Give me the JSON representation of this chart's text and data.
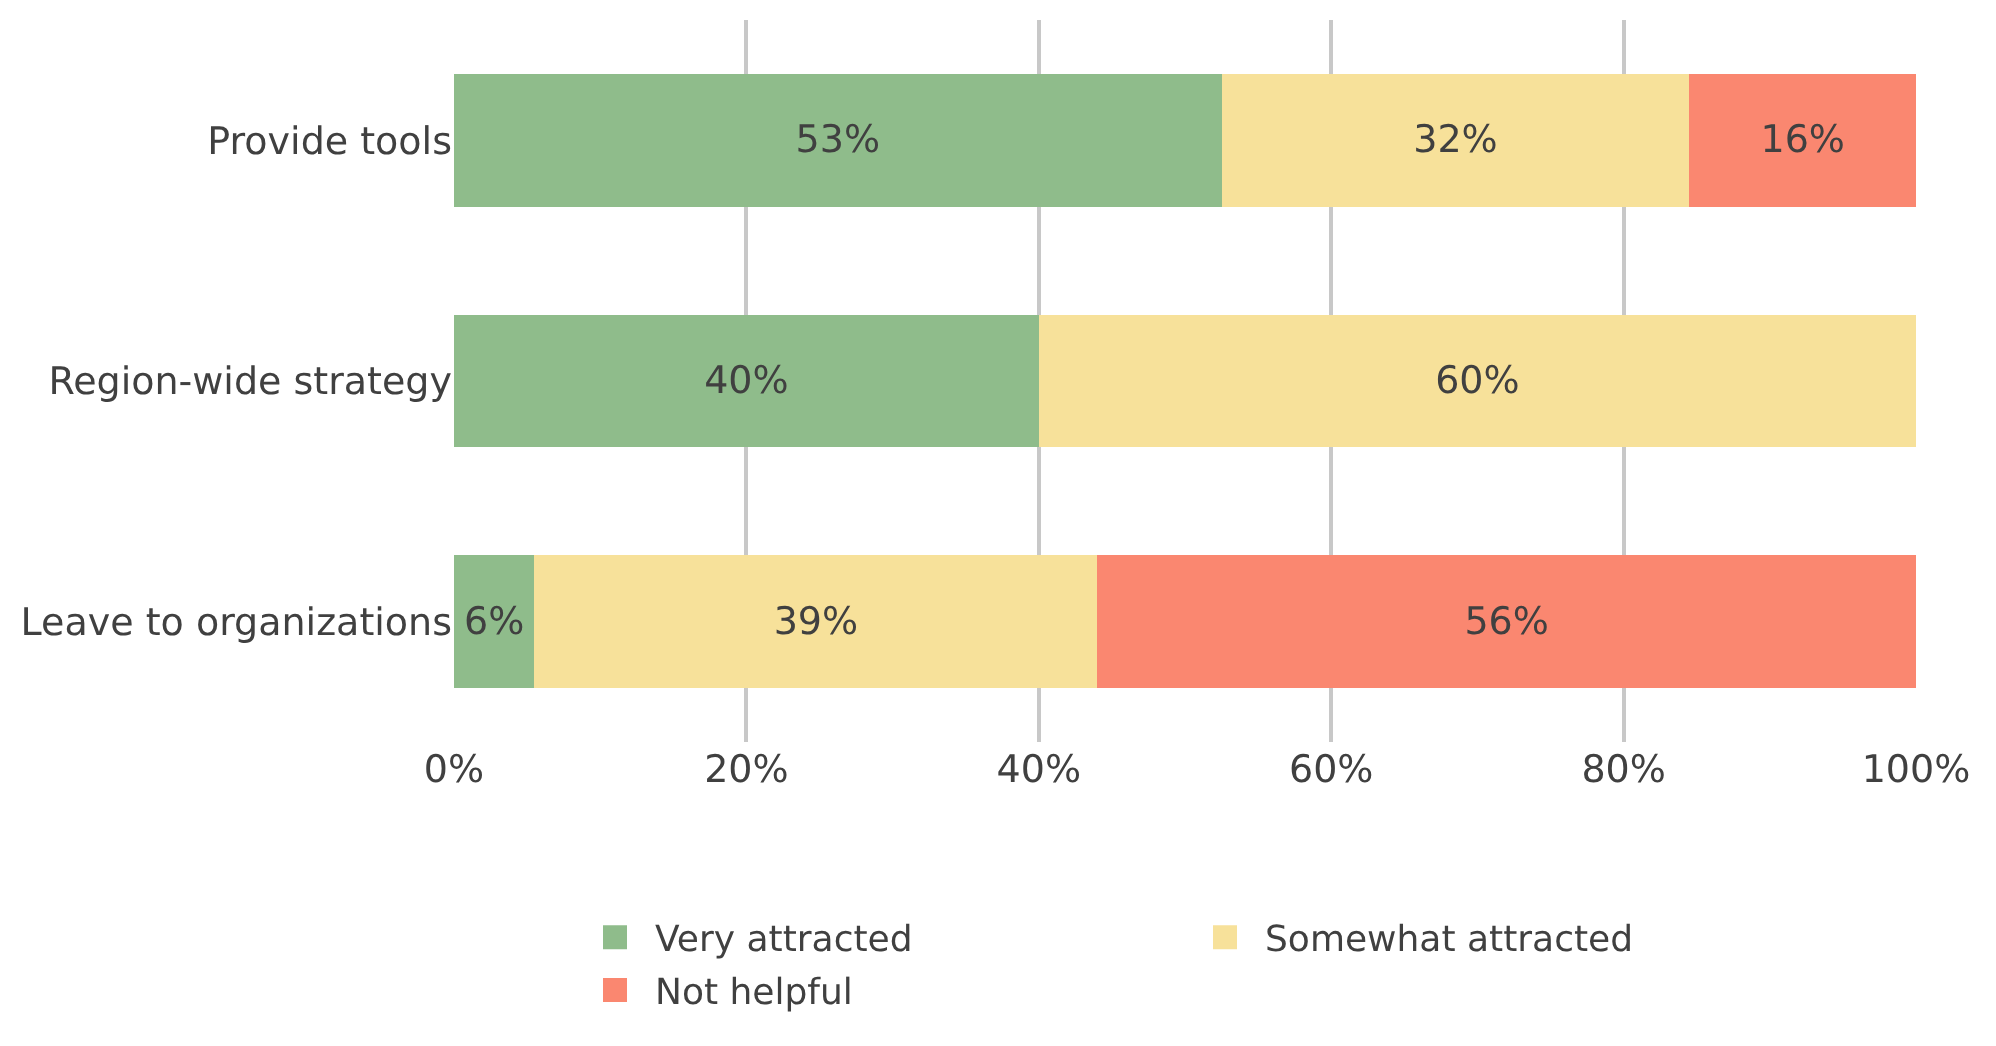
{
  "chart_data": {
    "type": "bar",
    "orientation": "horizontal",
    "stacked": true,
    "categories": [
      "Provide tools",
      "Region-wide strategy",
      "Leave to organizations"
    ],
    "series": [
      {
        "name": "Very attracted",
        "color": "#8fbc8b",
        "values": [
          52.5,
          40,
          5.5
        ],
        "value_labels": [
          "53%",
          "40%",
          "6%"
        ]
      },
      {
        "name": "Somewhat attracted",
        "color": "#f7e19a",
        "values": [
          32,
          60,
          38.5
        ],
        "value_labels": [
          "32%",
          "60%",
          "39%"
        ]
      },
      {
        "name": "Not helpful",
        "color": "#fa8770",
        "values": [
          15.5,
          null,
          56
        ],
        "value_labels": [
          "16%",
          null,
          "56%"
        ]
      }
    ],
    "xlim": [
      0,
      100
    ],
    "xticks": [
      {
        "value": 0,
        "label": "0%"
      },
      {
        "value": 20,
        "label": "20%"
      },
      {
        "value": 40,
        "label": "40%"
      },
      {
        "value": 60,
        "label": "60%"
      },
      {
        "value": 80,
        "label": "80%"
      },
      {
        "value": 100,
        "label": "100%"
      }
    ],
    "grid": "x",
    "legend": "bottom"
  }
}
